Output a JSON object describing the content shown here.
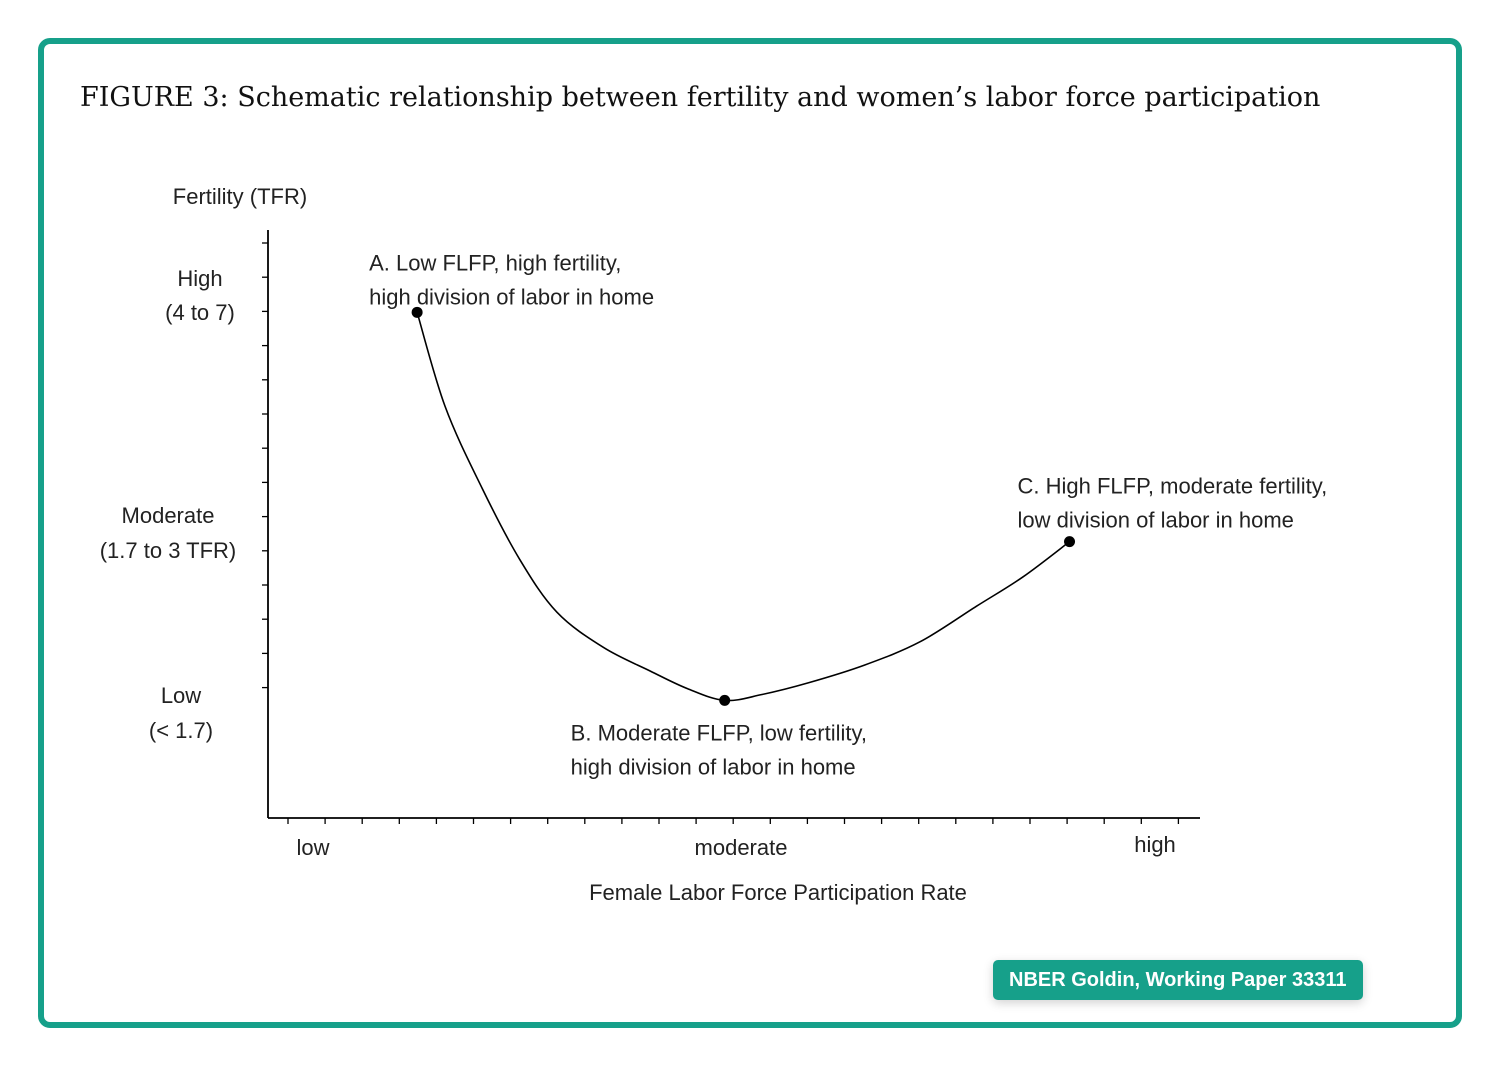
{
  "title": "FIGURE 3: Schematic relationship between fertility and women’s labor force participation",
  "badge": "NBER Goldin, Working Paper 33311",
  "colors": {
    "border": "#16a08a",
    "badge_bg": "#16a08a",
    "badge_text": "#ffffff",
    "line": "#000000"
  },
  "chart_data": {
    "type": "line",
    "title": "FIGURE 3: Schematic relationship between fertility and women’s labor force participation",
    "xlabel": "Female Labor Force Participation Rate",
    "ylabel": "Fertility (TFR)",
    "x_ticks": [
      "low",
      "moderate",
      "high"
    ],
    "y_ticks": [
      {
        "line1": "High",
        "line2": "(4 to 7)"
      },
      {
        "line1": "Moderate",
        "line2": "(1.7 to 3 TFR)"
      },
      {
        "line1": "Low",
        "line2": "(< 1.7)"
      }
    ],
    "grid": false,
    "legend": "none",
    "points": [
      {
        "label": "A",
        "x": 0.16,
        "y": 0.86,
        "line1": "A. Low FLFP, high fertility,",
        "line2": "high division of labor in home"
      },
      {
        "label": "B",
        "x": 0.49,
        "y": 0.2,
        "line1": "B. Moderate FLFP, low fertility,",
        "line2": "high division of labor in home"
      },
      {
        "label": "C",
        "x": 0.86,
        "y": 0.47,
        "line1": "C. High FLFP, moderate fertility,",
        "line2": "low division of labor in home"
      }
    ],
    "curve": {
      "x": [
        0.16,
        0.19,
        0.23,
        0.27,
        0.31,
        0.36,
        0.41,
        0.45,
        0.49,
        0.53,
        0.58,
        0.64,
        0.7,
        0.76,
        0.81,
        0.86
      ],
      "y": [
        0.86,
        0.7,
        0.56,
        0.44,
        0.35,
        0.29,
        0.25,
        0.22,
        0.2,
        0.21,
        0.23,
        0.26,
        0.3,
        0.36,
        0.41,
        0.47
      ]
    }
  }
}
